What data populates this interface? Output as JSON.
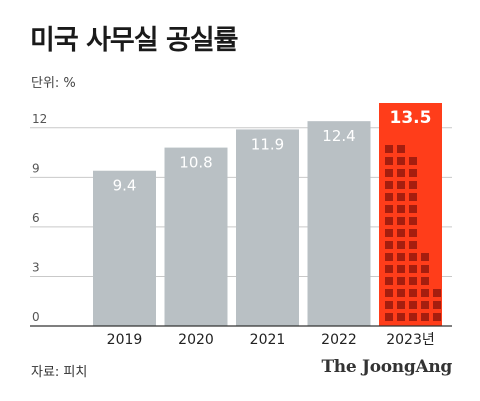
{
  "title": "미국 사무실 공실률",
  "unit_label": "단위: %",
  "source_label": "자료: 피치",
  "brand": "The JoongAng",
  "colors": {
    "bar": "#b9c0c4",
    "highlight": "#ff3d1a",
    "highlight_pattern": "#a51e0f",
    "gridline": "#c9c9c9",
    "axis": "#333333"
  },
  "chart_data": {
    "type": "bar",
    "categories": [
      "2019",
      "2020",
      "2021",
      "2022",
      "2023년"
    ],
    "values": [
      9.4,
      10.8,
      11.9,
      12.4,
      13.5
    ],
    "value_labels": [
      "9.4",
      "10.8",
      "11.9",
      "12.4",
      "13.5"
    ],
    "highlight_index": 4,
    "y_ticks": [
      0,
      3,
      6,
      9,
      12
    ],
    "y_tick_labels": [
      "0",
      "3",
      "6",
      "9",
      "12"
    ],
    "ylim": [
      0,
      13.5
    ],
    "grid": true,
    "legend": "none"
  }
}
